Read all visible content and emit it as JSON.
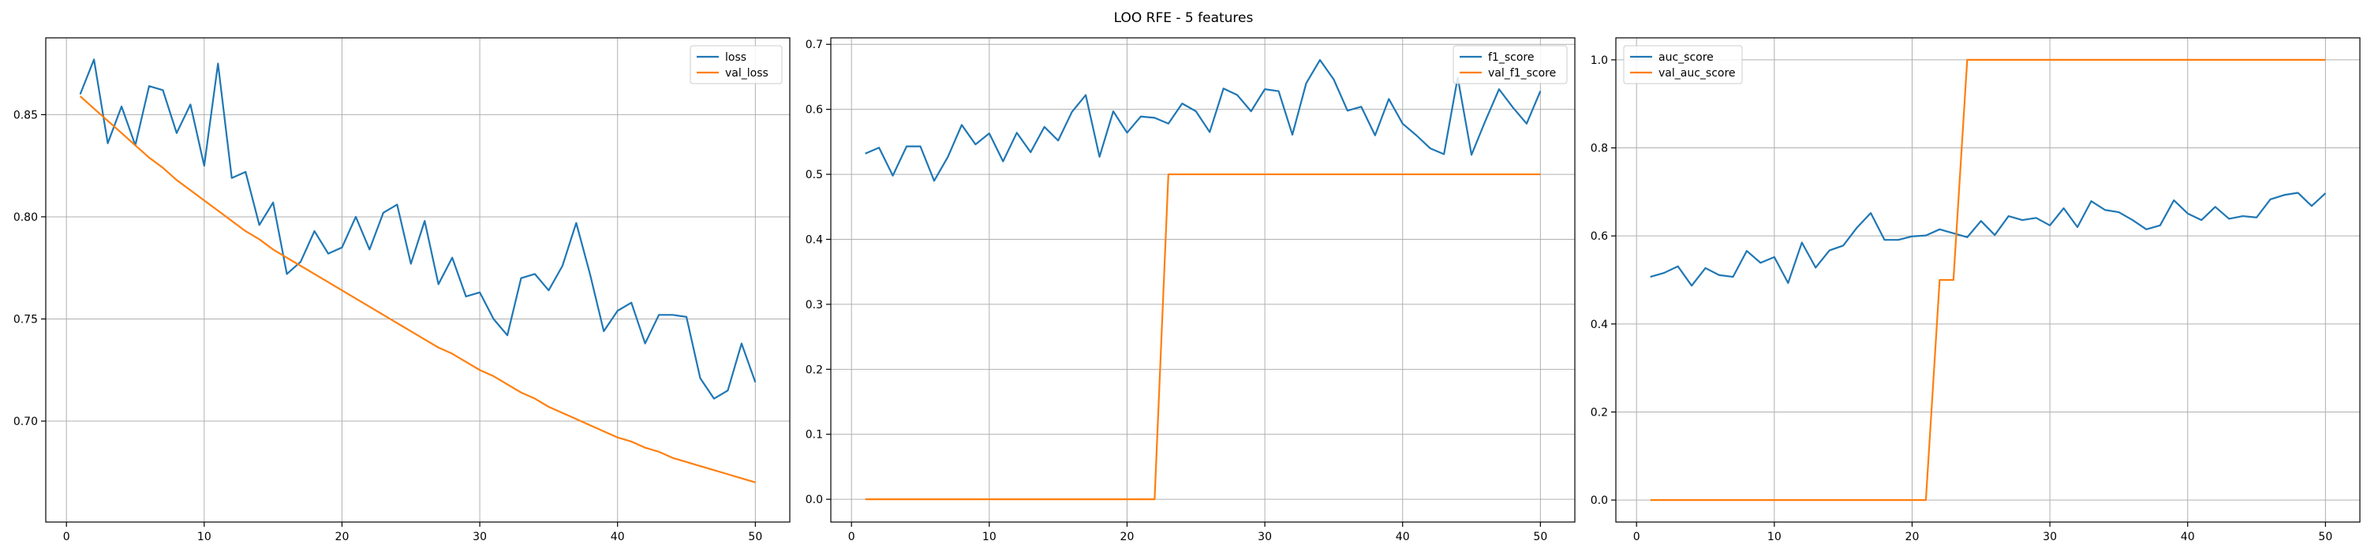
{
  "figure": {
    "title": "LOO RFE - 5 features"
  },
  "colors": {
    "series_1": "#1f77b4",
    "series_2": "#ff7f0e",
    "grid": "#b0b0b0",
    "axes": "#000000"
  },
  "chart_data": [
    {
      "type": "line",
      "title": "",
      "xlabel": "",
      "ylabel": "",
      "grid": true,
      "legend_position": "top-right",
      "xlim": [
        -1.5,
        52.5
      ],
      "ylim": [
        0.6506,
        0.8876
      ],
      "xticks": [
        0,
        10,
        20,
        30,
        40,
        50
      ],
      "yticks": [
        0.7,
        0.75,
        0.8,
        0.85
      ],
      "ytick_labels": [
        "0.70",
        "0.75",
        "0.80",
        "0.85"
      ],
      "x": [
        1,
        2,
        3,
        4,
        5,
        6,
        7,
        8,
        9,
        10,
        11,
        12,
        13,
        14,
        15,
        16,
        17,
        18,
        19,
        20,
        21,
        22,
        23,
        24,
        25,
        26,
        27,
        28,
        29,
        30,
        31,
        32,
        33,
        34,
        35,
        36,
        37,
        38,
        39,
        40,
        41,
        42,
        43,
        44,
        45,
        46,
        47,
        48,
        49,
        50
      ],
      "series": [
        {
          "name": "loss",
          "color": "#1f77b4",
          "values": [
            0.86,
            0.877,
            0.836,
            0.854,
            0.835,
            0.864,
            0.862,
            0.841,
            0.855,
            0.825,
            0.875,
            0.819,
            0.822,
            0.796,
            0.807,
            0.772,
            0.778,
            0.793,
            0.782,
            0.785,
            0.8,
            0.784,
            0.802,
            0.806,
            0.777,
            0.798,
            0.767,
            0.78,
            0.761,
            0.763,
            0.75,
            0.742,
            0.77,
            0.772,
            0.764,
            0.776,
            0.797,
            0.772,
            0.744,
            0.754,
            0.758,
            0.738,
            0.752,
            0.752,
            0.751,
            0.721,
            0.711,
            0.715,
            0.738,
            0.719
          ]
        },
        {
          "name": "val_loss",
          "color": "#ff7f0e",
          "values": [
            0.859,
            0.853,
            0.847,
            0.841,
            0.835,
            0.829,
            0.824,
            0.818,
            0.813,
            0.808,
            0.803,
            0.798,
            0.793,
            0.789,
            0.784,
            0.78,
            0.776,
            0.772,
            0.768,
            0.764,
            0.76,
            0.756,
            0.752,
            0.748,
            0.744,
            0.74,
            0.736,
            0.733,
            0.729,
            0.725,
            0.722,
            0.718,
            0.714,
            0.711,
            0.707,
            0.704,
            0.701,
            0.698,
            0.695,
            0.692,
            0.69,
            0.687,
            0.685,
            0.682,
            0.68,
            0.678,
            0.676,
            0.674,
            0.672,
            0.67
          ]
        }
      ]
    },
    {
      "type": "line",
      "title": "",
      "xlabel": "",
      "ylabel": "",
      "grid": true,
      "legend_position": "top-right",
      "xlim": [
        -1.5,
        52.5
      ],
      "ylim": [
        -0.035,
        0.71
      ],
      "xticks": [
        0,
        10,
        20,
        30,
        40,
        50
      ],
      "yticks": [
        0.0,
        0.1,
        0.2,
        0.3,
        0.4,
        0.5,
        0.6,
        0.7
      ],
      "ytick_labels": [
        "0.0",
        "0.1",
        "0.2",
        "0.3",
        "0.4",
        "0.5",
        "0.6",
        "0.7"
      ],
      "x": [
        1,
        2,
        3,
        4,
        5,
        6,
        7,
        8,
        9,
        10,
        11,
        12,
        13,
        14,
        15,
        16,
        17,
        18,
        19,
        20,
        21,
        22,
        23,
        24,
        25,
        26,
        27,
        28,
        29,
        30,
        31,
        32,
        33,
        34,
        35,
        36,
        37,
        38,
        39,
        40,
        41,
        42,
        43,
        44,
        45,
        46,
        47,
        48,
        49,
        50
      ],
      "series": [
        {
          "name": "f1_score",
          "color": "#1f77b4",
          "values": [
            0.532,
            0.541,
            0.498,
            0.543,
            0.543,
            0.49,
            0.527,
            0.576,
            0.546,
            0.563,
            0.52,
            0.564,
            0.534,
            0.573,
            0.552,
            0.596,
            0.622,
            0.527,
            0.597,
            0.564,
            0.589,
            0.587,
            0.578,
            0.609,
            0.597,
            0.565,
            0.632,
            0.622,
            0.597,
            0.631,
            0.628,
            0.561,
            0.64,
            0.676,
            0.646,
            0.598,
            0.604,
            0.56,
            0.616,
            0.578,
            0.56,
            0.54,
            0.531,
            0.649,
            0.53,
            0.582,
            0.631,
            0.603,
            0.578,
            0.628
          ]
        },
        {
          "name": "val_f1_score",
          "color": "#ff7f0e",
          "values": [
            0,
            0,
            0,
            0,
            0,
            0,
            0,
            0,
            0,
            0,
            0,
            0,
            0,
            0,
            0,
            0,
            0,
            0,
            0,
            0,
            0,
            0,
            0.5,
            0.5,
            0.5,
            0.5,
            0.5,
            0.5,
            0.5,
            0.5,
            0.5,
            0.5,
            0.5,
            0.5,
            0.5,
            0.5,
            0.5,
            0.5,
            0.5,
            0.5,
            0.5,
            0.5,
            0.5,
            0.5,
            0.5,
            0.5,
            0.5,
            0.5,
            0.5,
            0.5
          ]
        }
      ]
    },
    {
      "type": "line",
      "title": "",
      "xlabel": "",
      "ylabel": "",
      "grid": true,
      "legend_position": "top-left",
      "xlim": [
        -1.5,
        52.5
      ],
      "ylim": [
        -0.05,
        1.05
      ],
      "xticks": [
        0,
        10,
        20,
        30,
        40,
        50
      ],
      "yticks": [
        0.0,
        0.2,
        0.4,
        0.6,
        0.8,
        1.0
      ],
      "ytick_labels": [
        "0.0",
        "0.2",
        "0.4",
        "0.6",
        "0.8",
        "1.0"
      ],
      "x": [
        1,
        2,
        3,
        4,
        5,
        6,
        7,
        8,
        9,
        10,
        11,
        12,
        13,
        14,
        15,
        16,
        17,
        18,
        19,
        20,
        21,
        22,
        23,
        24,
        25,
        26,
        27,
        28,
        29,
        30,
        31,
        32,
        33,
        34,
        35,
        36,
        37,
        38,
        39,
        40,
        41,
        42,
        43,
        44,
        45,
        46,
        47,
        48,
        49,
        50
      ],
      "series": [
        {
          "name": "auc_score",
          "color": "#1f77b4",
          "values": [
            0.507,
            0.516,
            0.531,
            0.487,
            0.527,
            0.511,
            0.507,
            0.566,
            0.539,
            0.552,
            0.493,
            0.585,
            0.528,
            0.567,
            0.578,
            0.619,
            0.652,
            0.591,
            0.591,
            0.599,
            0.601,
            0.615,
            0.606,
            0.597,
            0.634,
            0.602,
            0.645,
            0.636,
            0.641,
            0.624,
            0.663,
            0.62,
            0.679,
            0.659,
            0.654,
            0.636,
            0.615,
            0.624,
            0.681,
            0.651,
            0.636,
            0.666,
            0.639,
            0.645,
            0.642,
            0.683,
            0.693,
            0.698,
            0.668,
            0.697
          ]
        },
        {
          "name": "val_auc_score",
          "color": "#ff7f0e",
          "values": [
            0,
            0,
            0,
            0,
            0,
            0,
            0,
            0,
            0,
            0,
            0,
            0,
            0,
            0,
            0,
            0,
            0,
            0,
            0,
            0,
            0,
            0.5,
            0.5,
            1,
            1,
            1,
            1,
            1,
            1,
            1,
            1,
            1,
            1,
            1,
            1,
            1,
            1,
            1,
            1,
            1,
            1,
            1,
            1,
            1,
            1,
            1,
            1,
            1,
            1,
            1
          ]
        }
      ]
    }
  ]
}
